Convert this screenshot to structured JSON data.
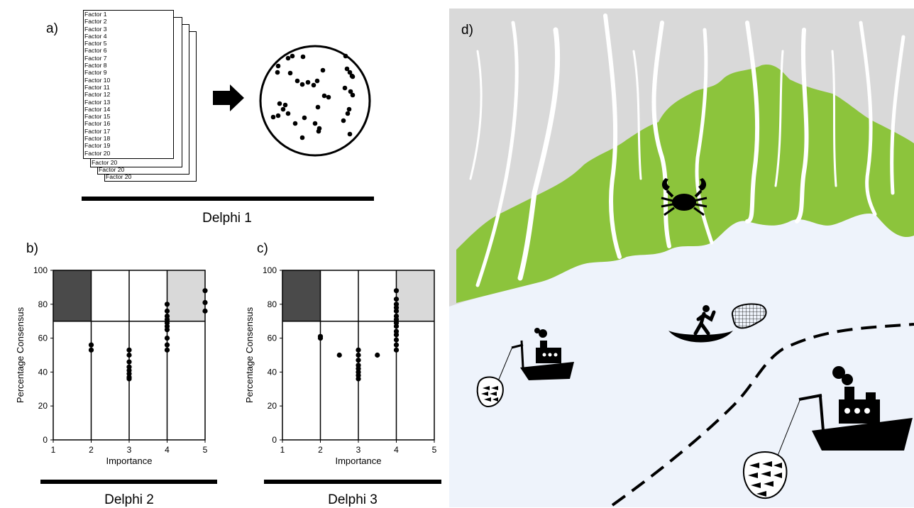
{
  "panel_a": {
    "label": "a)",
    "factors": [
      "Factor 1",
      "Factor 2",
      "Factor 3",
      "Factor 4",
      "Factor 5",
      "Factor 6",
      "Factor 7",
      "Factor 8",
      "Factor 9",
      "Factor 10",
      "Factor 11",
      "Factor 12",
      "Factor 13",
      "Factor 14",
      "Factor 15",
      "Factor 16",
      "Factor 17",
      "Factor 18",
      "Factor 19",
      "Factor 20"
    ],
    "stack_tails": [
      "Factor 20",
      "Factor 20",
      "Factor 20"
    ],
    "caption": "Delphi 1"
  },
  "chart_data": [
    {
      "id": "b",
      "label": "b)",
      "type": "scatter",
      "xlabel": "Importance",
      "ylabel": "Percentage Consensus",
      "xlim": [
        1,
        5
      ],
      "ylim": [
        0,
        100
      ],
      "xticks": [
        "1",
        "2",
        "3",
        "4",
        "5"
      ],
      "yticks": [
        "0",
        "20",
        "40",
        "60",
        "80",
        "100"
      ],
      "threshold_y": 70,
      "points": [
        [
          2,
          56
        ],
        [
          2,
          53
        ],
        [
          3,
          53
        ],
        [
          3,
          50
        ],
        [
          3,
          46
        ],
        [
          3,
          43
        ],
        [
          3,
          41
        ],
        [
          3,
          39
        ],
        [
          3,
          37
        ],
        [
          3,
          36
        ],
        [
          4,
          80
        ],
        [
          4,
          76
        ],
        [
          4,
          73
        ],
        [
          4,
          71
        ],
        [
          4,
          69
        ],
        [
          4,
          67
        ],
        [
          4,
          65
        ],
        [
          4,
          60
        ],
        [
          4,
          56
        ],
        [
          4,
          53
        ],
        [
          5,
          88
        ],
        [
          5,
          81
        ],
        [
          5,
          76
        ]
      ],
      "caption": "Delphi 2"
    },
    {
      "id": "c",
      "label": "c)",
      "type": "scatter",
      "xlabel": "Importance",
      "ylabel": "Percentage Consensus",
      "xlim": [
        1,
        5
      ],
      "ylim": [
        0,
        100
      ],
      "xticks": [
        "1",
        "2",
        "3",
        "4",
        "5"
      ],
      "yticks": [
        "0",
        "20",
        "40",
        "60",
        "80",
        "100"
      ],
      "threshold_y": 70,
      "points": [
        [
          2,
          61
        ],
        [
          2,
          60
        ],
        [
          2.5,
          50
        ],
        [
          3.5,
          50
        ],
        [
          3,
          53
        ],
        [
          3,
          50
        ],
        [
          3,
          47
        ],
        [
          3,
          44
        ],
        [
          3,
          42
        ],
        [
          3,
          40
        ],
        [
          3,
          38
        ],
        [
          3,
          36
        ],
        [
          4,
          88
        ],
        [
          4,
          83
        ],
        [
          4,
          80
        ],
        [
          4,
          78
        ],
        [
          4,
          76
        ],
        [
          4,
          73
        ],
        [
          4,
          71
        ],
        [
          4,
          69
        ],
        [
          4,
          67
        ],
        [
          4,
          64
        ],
        [
          4,
          62
        ],
        [
          4,
          59
        ],
        [
          4,
          56
        ],
        [
          4,
          53
        ]
      ],
      "caption": "Delphi 3"
    }
  ],
  "panel_d": {
    "label": "d)",
    "colors": {
      "land": "#d9d9d9",
      "mangrove": "#8cc43c",
      "water": "#eef3fb",
      "river": "#ffffff"
    },
    "icons": [
      "crab-icon",
      "fisher-boat-icon",
      "hand-net-icon",
      "small-trawler-icon",
      "large-trawler-icon",
      "fish-net-icon"
    ]
  }
}
